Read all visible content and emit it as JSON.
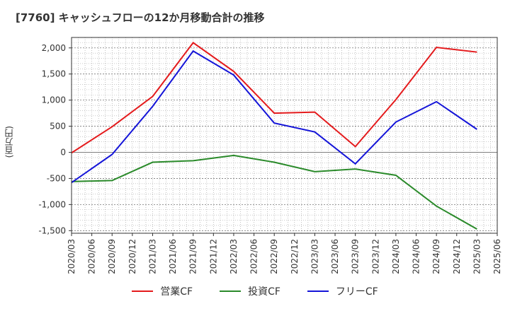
{
  "chart_data": {
    "type": "line",
    "title": "[7760]  キャッシュフローの12か月移動合計の推移",
    "ylabel": "(百万円)",
    "xlabel": "",
    "x": [
      "2020/03",
      "2020/06",
      "2020/09",
      "2020/12",
      "2021/03",
      "2021/06",
      "2021/09",
      "2021/12",
      "2022/03",
      "2022/06",
      "2022/09",
      "2022/12",
      "2023/03",
      "2023/06",
      "2023/09",
      "2023/12",
      "2024/03",
      "2024/06",
      "2024/09",
      "2024/12",
      "2025/03",
      "2025/06"
    ],
    "ylim": [
      -1550,
      2200
    ],
    "yticks": [
      2000,
      1500,
      1000,
      500,
      0,
      -500,
      -1000,
      -1500
    ],
    "ytick_labels": [
      "2,000",
      "1,500",
      "1,000",
      "500",
      "0",
      "-500",
      "-1,000",
      "-1,500"
    ],
    "grid": true,
    "legend_position": "bottom",
    "series": [
      {
        "name": "営業CF",
        "color": "#e41a1c",
        "points": [
          [
            "2020/03",
            -10
          ],
          [
            "2020/09",
            490
          ],
          [
            "2021/03",
            1070
          ],
          [
            "2021/09",
            2100
          ],
          [
            "2022/03",
            1550
          ],
          [
            "2022/09",
            750
          ],
          [
            "2023/03",
            770
          ],
          [
            "2023/09",
            110
          ],
          [
            "2024/03",
            1010
          ],
          [
            "2024/09",
            2010
          ],
          [
            "2025/03",
            1920
          ]
        ]
      },
      {
        "name": "投資CF",
        "color": "#2a8a2a",
        "points": [
          [
            "2020/03",
            -560
          ],
          [
            "2020/09",
            -540
          ],
          [
            "2021/03",
            -190
          ],
          [
            "2021/09",
            -160
          ],
          [
            "2022/03",
            -60
          ],
          [
            "2022/09",
            -190
          ],
          [
            "2023/03",
            -370
          ],
          [
            "2023/09",
            -320
          ],
          [
            "2024/03",
            -440
          ],
          [
            "2024/09",
            -1030
          ],
          [
            "2025/03",
            -1470
          ]
        ]
      },
      {
        "name": "フリーCF",
        "color": "#1414d8",
        "points": [
          [
            "2020/03",
            -580
          ],
          [
            "2020/09",
            -40
          ],
          [
            "2021/03",
            880
          ],
          [
            "2021/09",
            1940
          ],
          [
            "2022/03",
            1480
          ],
          [
            "2022/09",
            560
          ],
          [
            "2023/03",
            390
          ],
          [
            "2023/09",
            -220
          ],
          [
            "2024/03",
            580
          ],
          [
            "2024/09",
            970
          ],
          [
            "2025/03",
            440
          ]
        ]
      }
    ]
  }
}
